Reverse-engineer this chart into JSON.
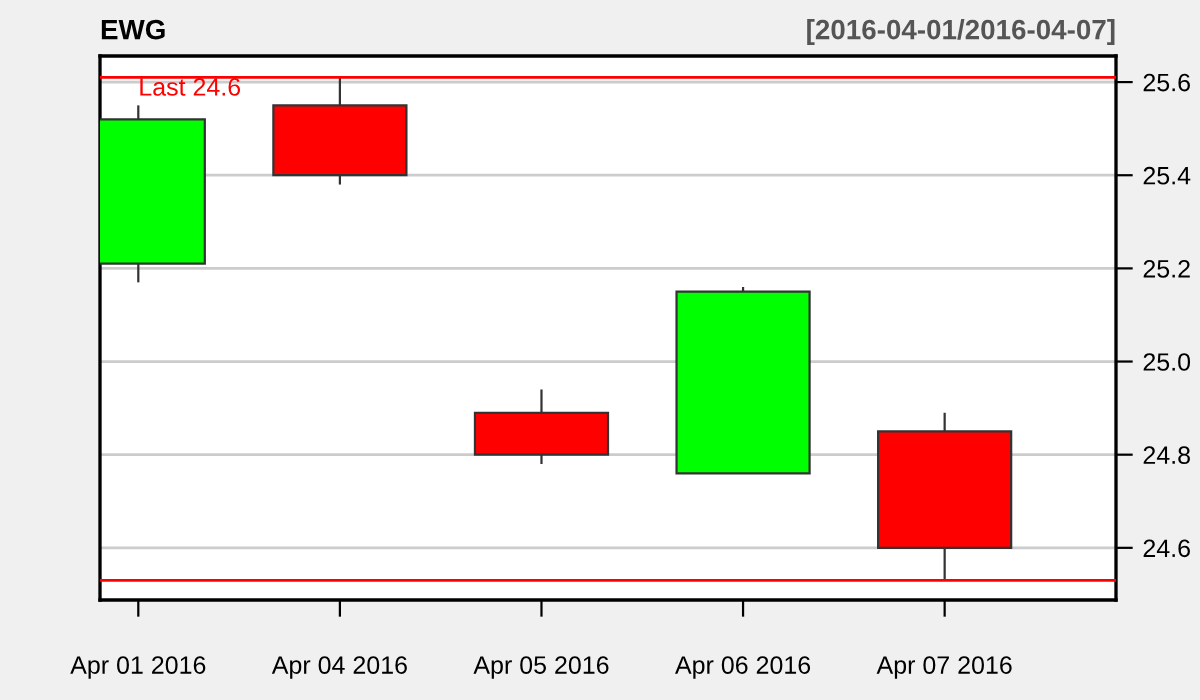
{
  "chart_data": {
    "type": "candlestick",
    "title": "EWG",
    "subtitle": "[2016-04-01/2016-04-07]",
    "categories": [
      "Apr 01 2016",
      "Apr 04 2016",
      "Apr 05 2016",
      "Apr 06 2016",
      "Apr 07 2016"
    ],
    "ohlc": [
      [
        25.21,
        25.55,
        25.17,
        25.52
      ],
      [
        25.55,
        25.61,
        25.38,
        25.4
      ],
      [
        24.89,
        24.94,
        24.78,
        24.8
      ],
      [
        24.76,
        25.16,
        24.76,
        25.15
      ],
      [
        24.85,
        24.89,
        24.53,
        24.6
      ]
    ],
    "colors": [
      "#00ff00",
      "#ff0000",
      "#ff0000",
      "#00ff00",
      "#ff0000"
    ],
    "ylim": [
      24.488,
      25.656
    ],
    "yticks": [
      {
        "value": 24.6,
        "label": "24.6"
      },
      {
        "value": 24.8,
        "label": "24.8"
      },
      {
        "value": 25.0,
        "label": "25.0"
      },
      {
        "value": 25.2,
        "label": "25.2"
      },
      {
        "value": 25.4,
        "label": "25.4"
      },
      {
        "value": 25.6,
        "label": "25.6"
      }
    ],
    "grid": "y",
    "ref_lines": [
      {
        "axis": "y",
        "value": 25.61,
        "label": "Last 24.6",
        "color": "#ff0000"
      },
      {
        "axis": "y",
        "value": 24.53,
        "color": "#ff0000"
      }
    ]
  }
}
